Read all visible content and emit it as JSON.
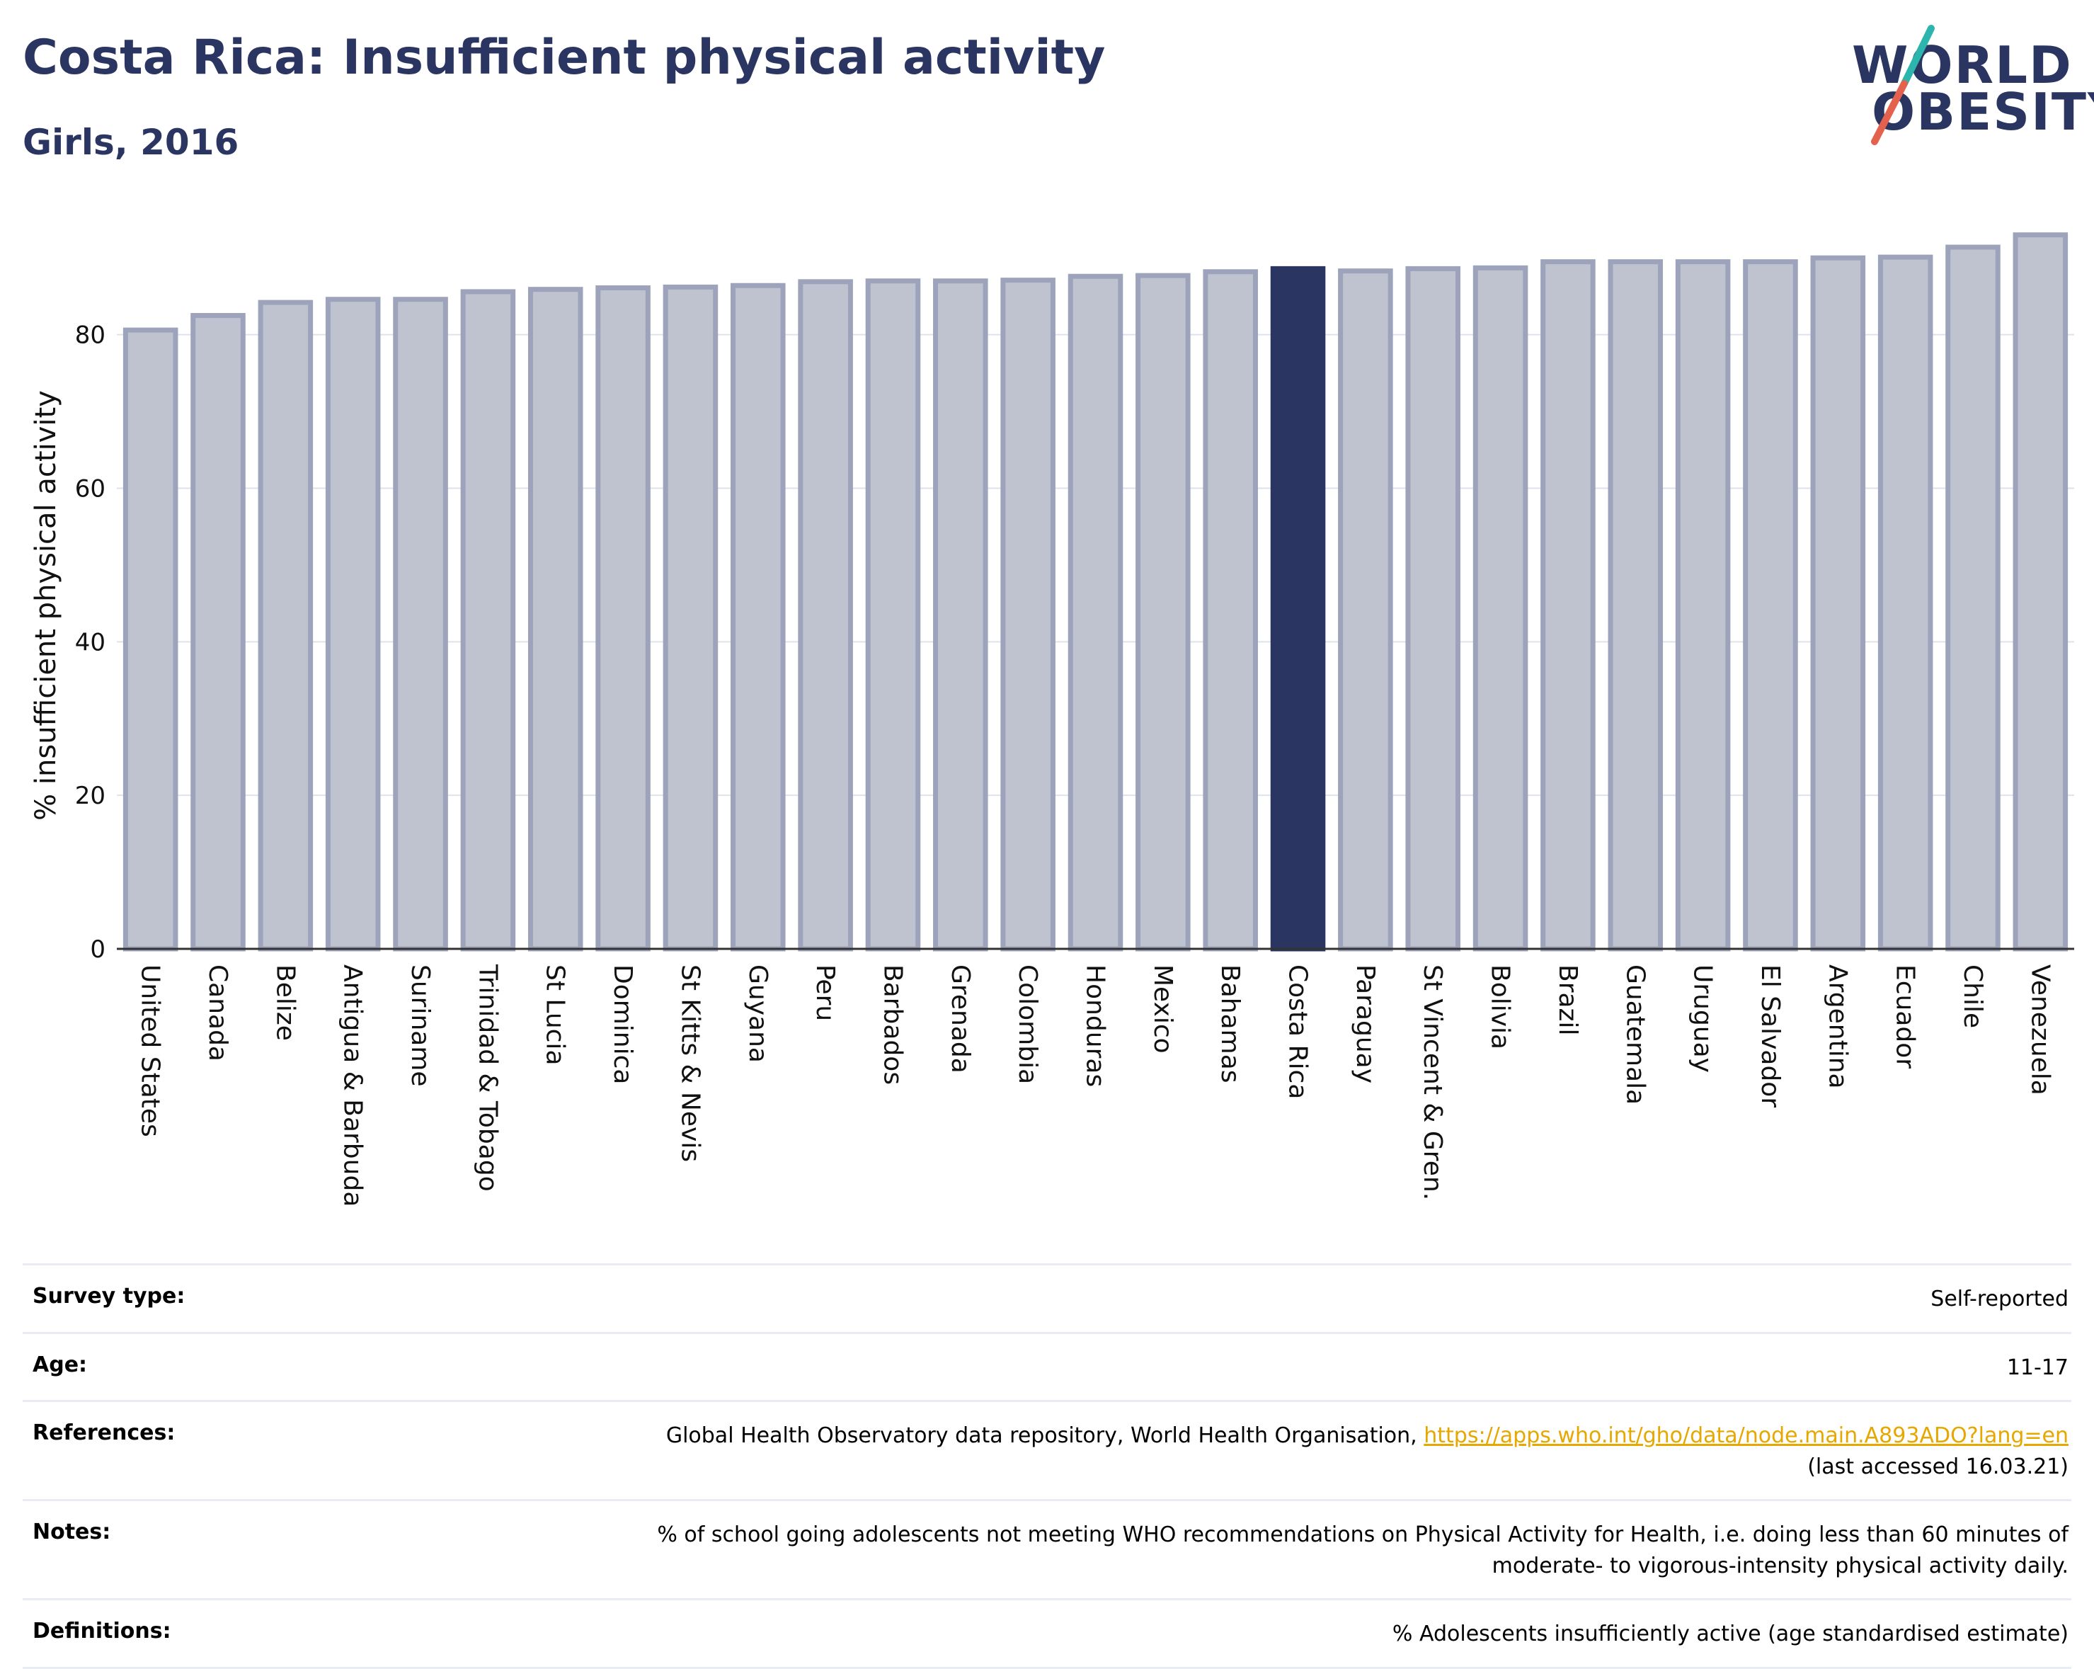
{
  "header": {
    "title": "Costa Rica: Insufficient physical activity",
    "subtitle": "Girls, 2016"
  },
  "logo": {
    "line1": "WORLD",
    "line2": "OBESITY",
    "text_color": "#2a3561",
    "slash_colors": [
      "#2bb5ad",
      "#e4614d"
    ]
  },
  "chart_data": {
    "type": "bar",
    "ylabel": "% insufficient physical activity",
    "xlabel": "",
    "ylim": [
      0,
      95
    ],
    "yticks": [
      0,
      20,
      40,
      60,
      80
    ],
    "grid": true,
    "highlight": "Costa Rica",
    "highlight_color": "#2a3561",
    "bar_color": "#bfc3d0",
    "bar_edge_color": "#9da3ba",
    "categories": [
      "United States",
      "Canada",
      "Belize",
      "Antigua & Barbuda",
      "Suriname",
      "Trinidad & Tobago",
      "St Lucia",
      "Dominica",
      "St Kitts & Nevis",
      "Guyana",
      "Peru",
      "Barbados",
      "Grenada",
      "Colombia",
      "Honduras",
      "Mexico",
      "Bahamas",
      "Costa Rica",
      "Paraguay",
      "St Vincent & Gren.",
      "Bolivia",
      "Brazil",
      "Guatemala",
      "Uruguay",
      "El Salvador",
      "Argentina",
      "Ecuador",
      "Chile",
      "Venezuela"
    ],
    "values": [
      80.6,
      82.5,
      84.2,
      84.6,
      84.6,
      85.6,
      85.9,
      86.1,
      86.2,
      86.4,
      86.9,
      87.0,
      87.0,
      87.1,
      87.6,
      87.7,
      88.2,
      88.6,
      88.3,
      88.6,
      88.7,
      89.5,
      89.5,
      89.5,
      89.5,
      90.0,
      90.1,
      91.4,
      93.0
    ]
  },
  "info": {
    "survey_type_label": "Survey type:",
    "survey_type_value": "Self-reported",
    "age_label": "Age:",
    "age_value": "11-17",
    "references_label": "References:",
    "references_text": "Global Health Observatory data repository, World Health Organisation,",
    "references_link": "https://apps.who.int/gho/data/node.main.A893ADO?lang=en",
    "references_accessed": "(last accessed 16.03.21)",
    "notes_label": "Notes:",
    "notes_line1": "% of school going adolescents not meeting WHO recommendations on Physical Activity for Health, i.e. doing less than 60 minutes of",
    "notes_line2": "moderate- to vigorous-intensity physical activity daily.",
    "definitions_label": "Definitions:",
    "definitions_value": "% Adolescents insufficiently active (age standardised estimate)",
    "link_color": "#e6a700"
  }
}
